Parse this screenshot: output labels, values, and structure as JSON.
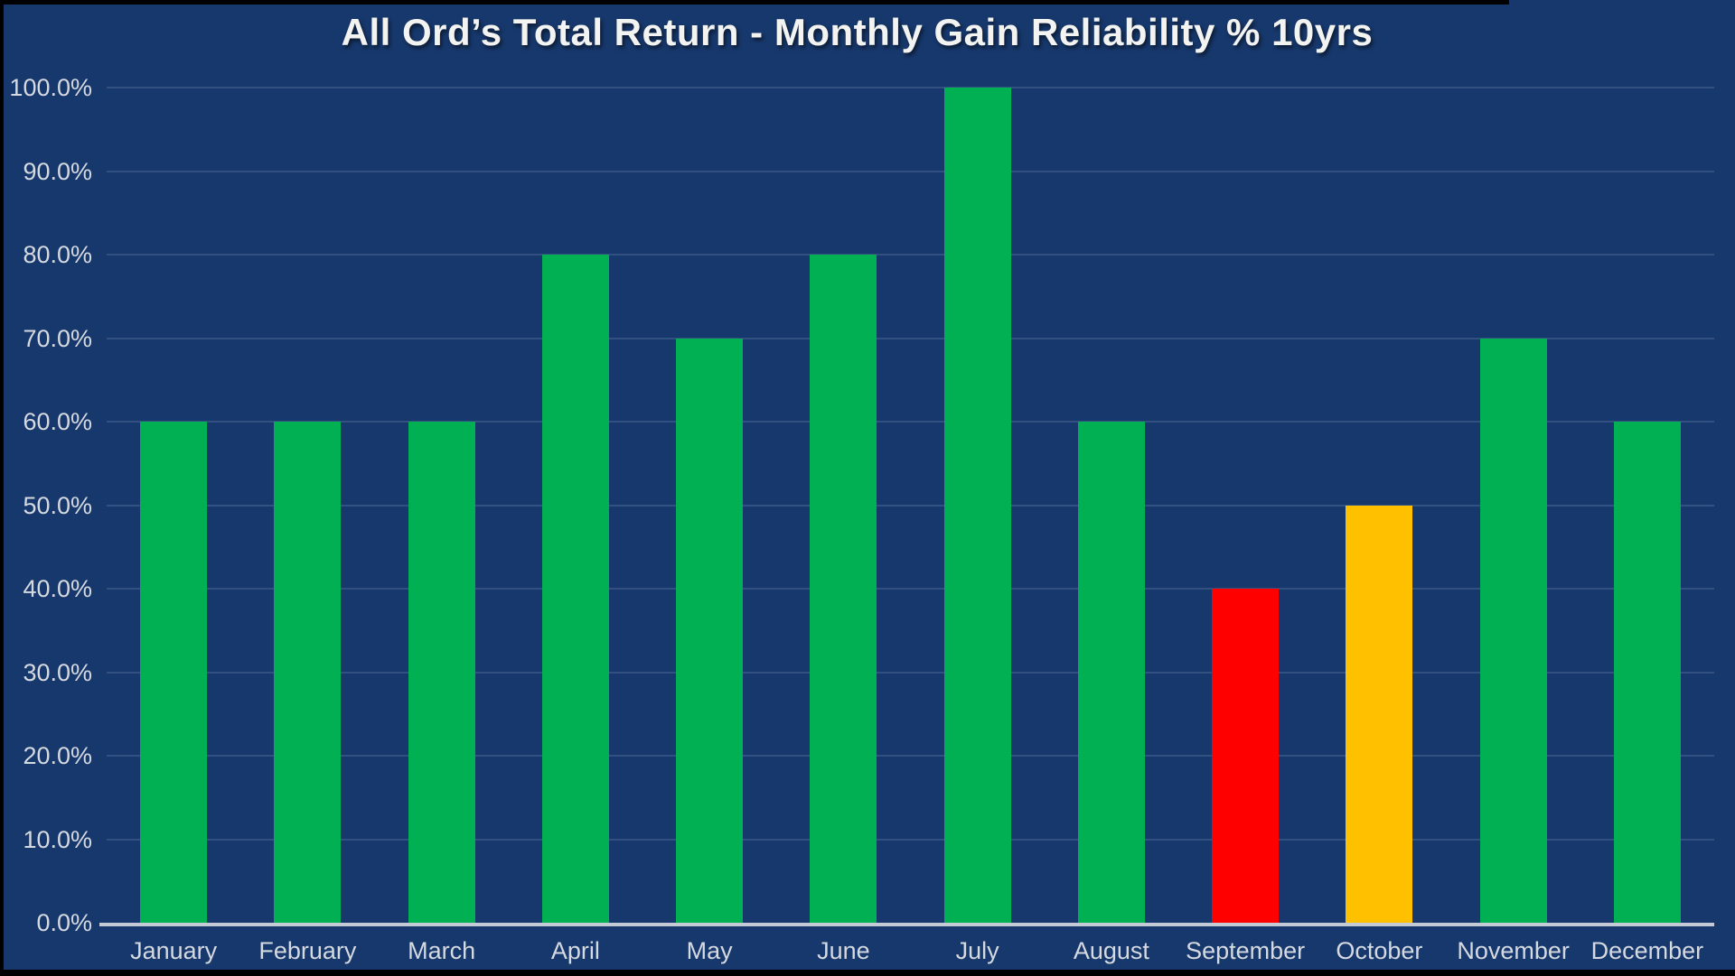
{
  "window": {
    "background_color": "#17386C",
    "edge_color": "#000000"
  },
  "chart_data": {
    "type": "bar",
    "title": "All Ord’s Total Return - Monthly Gain Reliability % 10yrs",
    "categories": [
      "January",
      "February",
      "March",
      "April",
      "May",
      "June",
      "July",
      "August",
      "September",
      "October",
      "November",
      "December"
    ],
    "values": [
      60,
      60,
      60,
      80,
      70,
      80,
      100,
      60,
      40,
      50,
      70,
      60
    ],
    "value_unit": "%",
    "bar_color_keys": [
      "green",
      "green",
      "green",
      "green",
      "green",
      "green",
      "green",
      "green",
      "red",
      "amber",
      "green",
      "green"
    ],
    "palette": {
      "green": "#00B052",
      "red": "#FF0000",
      "amber": "#FFC000"
    },
    "y_tick_values": [
      0,
      10,
      20,
      30,
      40,
      50,
      60,
      70,
      80,
      90,
      100
    ],
    "y_tick_labels": [
      "0.0%",
      "10.0%",
      "20.0%",
      "30.0%",
      "40.0%",
      "50.0%",
      "60.0%",
      "70.0%",
      "80.0%",
      "90.0%",
      "100.0%"
    ],
    "ylim": [
      0,
      100
    ],
    "xlabel": "",
    "ylabel": "",
    "grid": true,
    "legend": null,
    "title_color": "#F3F3F1",
    "axis_label_color": "#D5D9E0",
    "gridline_color": "rgba(190,212,238,0.16)",
    "baseline_color": "#C4CBD7"
  }
}
